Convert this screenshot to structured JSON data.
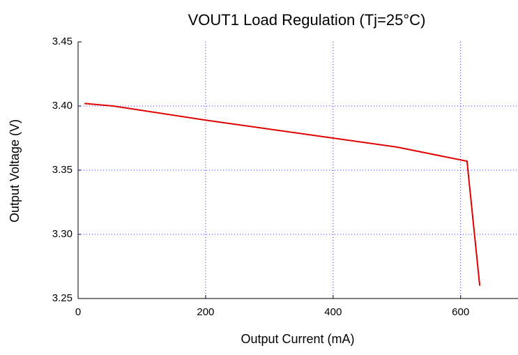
{
  "chart_data": {
    "type": "line",
    "title": "VOUT1 Load Regulation (Tj=25°C)",
    "x_label": "Output Current (mA)",
    "y_label": "Output Voltage (V)",
    "x": [
      10,
      55,
      200,
      400,
      500,
      610,
      630
    ],
    "series": [
      {
        "name": "VOUT1",
        "color": "#e00000",
        "values": [
          3.402,
          3.4,
          3.389,
          3.375,
          3.368,
          3.357,
          3.26
        ]
      }
    ],
    "xlim": [
      0,
      690
    ],
    "xticks": [
      0,
      200,
      400,
      600
    ],
    "ylim": [
      3.25,
      3.45
    ],
    "yticks": [
      3.25,
      {
        "value": 3.3,
        "label": "3.30"
      },
      3.35,
      {
        "value": 3.4,
        "label": "3.40"
      },
      3.45
    ],
    "grid": true,
    "grid_color": "#3030ff"
  }
}
